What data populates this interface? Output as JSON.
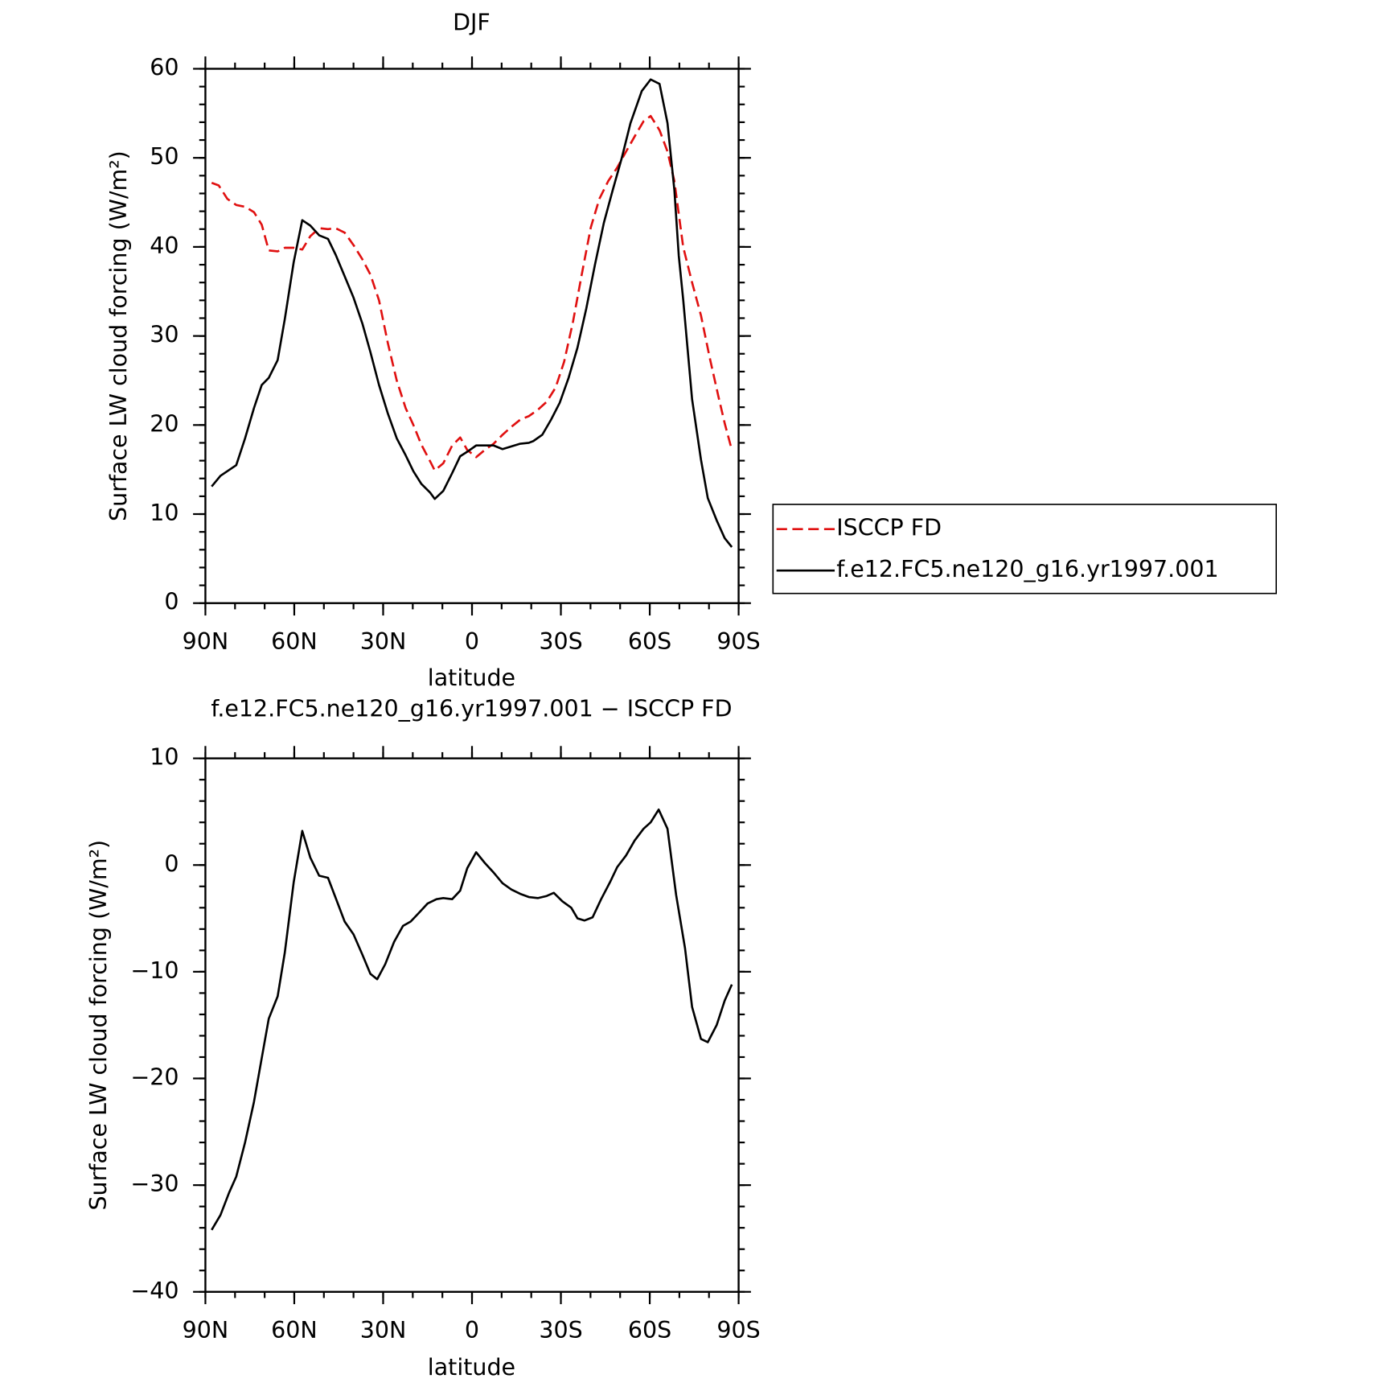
{
  "chart_data": [
    {
      "type": "line",
      "title": "DJF",
      "x_label": "latitude",
      "y_label": "Surface LW cloud forcing (W/m²)",
      "xlim": [
        90,
        -90
      ],
      "xticks": [
        {
          "value": 90,
          "label": "90N"
        },
        {
          "value": 60,
          "label": "60N"
        },
        {
          "value": 30,
          "label": "30N"
        },
        0,
        {
          "value": -30,
          "label": "30S"
        },
        {
          "value": -60,
          "label": "60S"
        },
        {
          "value": -90,
          "label": "90S"
        }
      ],
      "ylim": [
        0,
        60
      ],
      "yticks": [
        0,
        10,
        20,
        30,
        40,
        50,
        60
      ],
      "legend": "right",
      "series": [
        {
          "name": "ISCCP FD",
          "color": "#e01010",
          "dashed": true,
          "x": [
            87.9,
            85.5,
            82.6,
            79.6,
            76.6,
            73.6,
            71,
            68.6,
            65.6,
            63.2,
            60.2,
            57.3,
            54.6,
            51.6,
            48.6,
            46,
            43,
            40,
            37,
            34.3,
            31.4,
            28.4,
            25.4,
            22.4,
            19.8,
            17.1,
            14.1,
            12.6,
            9.7,
            6.7,
            4,
            1.6,
            -1.4,
            -4.3,
            -7.3,
            -10.3,
            -13.3,
            -16.3,
            -19.2,
            -22.2,
            -25.2,
            -28.2,
            -31.1,
            -34.1,
            -37.1,
            -40.1,
            -43,
            -46,
            -49,
            -52,
            -54.9,
            -57.9,
            -60.3,
            -63.3,
            -66,
            -68.3,
            -71.3,
            -74.3,
            -77.3,
            -80.2,
            -83.2,
            -85.3,
            -87.7
          ],
          "values": [
            47.2,
            46.9,
            45.4,
            44.7,
            44.5,
            43.9,
            42.5,
            39.6,
            39.5,
            39.9,
            39.9,
            39.7,
            41.2,
            42.1,
            42,
            42.1,
            41.6,
            40.2,
            38.6,
            36.9,
            34,
            29.2,
            25,
            21.9,
            20,
            17.8,
            15.9,
            14.9,
            15.7,
            17.7,
            18.6,
            17.2,
            16.4,
            17.2,
            17.9,
            18.9,
            19.8,
            20.6,
            21,
            21.7,
            22.6,
            24.2,
            27.1,
            31.6,
            37,
            42.2,
            45.4,
            47.4,
            48.9,
            50.7,
            52.4,
            54.1,
            54.7,
            53.1,
            50.7,
            47.4,
            40,
            36,
            32.3,
            27.6,
            23.2,
            20.2,
            17.2
          ]
        },
        {
          "name": "f.e12.FC5.ne120_g16.yr1997.001",
          "color": "#000000",
          "dashed": false,
          "x": [
            87.9,
            84.9,
            79.6,
            76.6,
            73.6,
            71,
            68.6,
            65.6,
            63.2,
            60.2,
            57.3,
            54.6,
            51.6,
            48.6,
            46,
            43,
            40,
            37,
            34.3,
            31.4,
            28.4,
            25.4,
            22.4,
            19.8,
            17.1,
            14.1,
            12.6,
            9.7,
            6.7,
            4,
            1.6,
            -1.4,
            -4.3,
            -7.3,
            -10.3,
            -13.3,
            -16.3,
            -19.2,
            -20.7,
            -23.7,
            -26.7,
            -29.6,
            -32.6,
            -35.6,
            -38.6,
            -41.5,
            -44.5,
            -47.5,
            -50.5,
            -53.5,
            -57.3,
            -60.3,
            -63.3,
            -66,
            -68.3,
            -69.8,
            -71.3,
            -74.3,
            -77.3,
            -79.6,
            -82.6,
            -85.3,
            -87.7
          ],
          "values": [
            13.1,
            14.3,
            15.5,
            18.5,
            21.9,
            24.5,
            25.3,
            27.3,
            31.9,
            38.3,
            43,
            42.4,
            41.3,
            40.9,
            39.1,
            36.7,
            34.3,
            31.4,
            28.2,
            24.5,
            21.3,
            18.5,
            16.6,
            14.8,
            13.4,
            12.4,
            11.7,
            12.6,
            14.6,
            16.5,
            17,
            17.7,
            17.7,
            17.7,
            17.3,
            17.6,
            17.9,
            18,
            18.2,
            18.9,
            20.6,
            22.5,
            25.3,
            28.7,
            33.1,
            38,
            42.7,
            46.4,
            49.9,
            53.9,
            57.5,
            58.8,
            58.3,
            53.9,
            46.4,
            39,
            34.1,
            22.9,
            16.1,
            11.8,
            9.3,
            7.3,
            6.3
          ]
        }
      ]
    },
    {
      "type": "line",
      "title": "f.e12.FC5.ne120_g16.yr1997.001 − ISCCP FD",
      "x_label": "latitude",
      "y_label": "Surface LW cloud forcing (W/m²)",
      "xlim": [
        90,
        -90
      ],
      "xticks": [
        {
          "value": 90,
          "label": "90N"
        },
        {
          "value": 60,
          "label": "60N"
        },
        {
          "value": 30,
          "label": "30N"
        },
        0,
        {
          "value": -30,
          "label": "30S"
        },
        {
          "value": -60,
          "label": "60S"
        },
        {
          "value": -90,
          "label": "90S"
        }
      ],
      "ylim": [
        -40,
        10
      ],
      "yticks": [
        {
          "value": -40,
          "label": "−40"
        },
        {
          "value": -30,
          "label": "−30"
        },
        {
          "value": -20,
          "label": "−20"
        },
        {
          "value": -10,
          "label": "−10"
        },
        0,
        10
      ],
      "series": [
        {
          "color": "#000000",
          "dashed": false,
          "x": [
            87.9,
            84.9,
            82,
            79.6,
            76.6,
            73.6,
            71,
            68.6,
            65.6,
            63.2,
            60.2,
            57.3,
            54.6,
            51.6,
            48.6,
            46,
            43,
            40,
            37,
            34.3,
            32,
            29.3,
            26.3,
            23.3,
            20.7,
            18,
            15,
            12,
            9.7,
            6.7,
            4,
            1.6,
            -1.4,
            -4.3,
            -7.3,
            -10.3,
            -13.3,
            -16.3,
            -19.2,
            -22.2,
            -25.2,
            -27.6,
            -30.5,
            -33.5,
            -35.6,
            -38,
            -40.7,
            -43.6,
            -46.6,
            -49,
            -52,
            -54.9,
            -57.9,
            -60.3,
            -63,
            -66,
            -68.9,
            -71.9,
            -74.3,
            -77.3,
            -79.6,
            -82.6,
            -85.3,
            -87.7
          ],
          "values": [
            -34.2,
            -32.8,
            -30.7,
            -29.2,
            -26,
            -22.2,
            -18.1,
            -14.4,
            -12.3,
            -8.2,
            -1.6,
            3.2,
            0.7,
            -1,
            -1.2,
            -3.1,
            -5.3,
            -6.5,
            -8.4,
            -10.2,
            -10.7,
            -9.3,
            -7.2,
            -5.7,
            -5.3,
            -4.5,
            -3.6,
            -3.2,
            -3.1,
            -3.2,
            -2.4,
            -0.3,
            1.2,
            0.2,
            -0.7,
            -1.7,
            -2.3,
            -2.7,
            -3,
            -3.1,
            -2.9,
            -2.6,
            -3.4,
            -4,
            -5,
            -5.2,
            -4.9,
            -3.2,
            -1.6,
            -0.2,
            0.9,
            2.3,
            3.4,
            4,
            5.2,
            3.4,
            -2.8,
            -7.8,
            -13.3,
            -16.3,
            -16.6,
            -15,
            -12.7,
            -11.2
          ]
        }
      ]
    }
  ]
}
